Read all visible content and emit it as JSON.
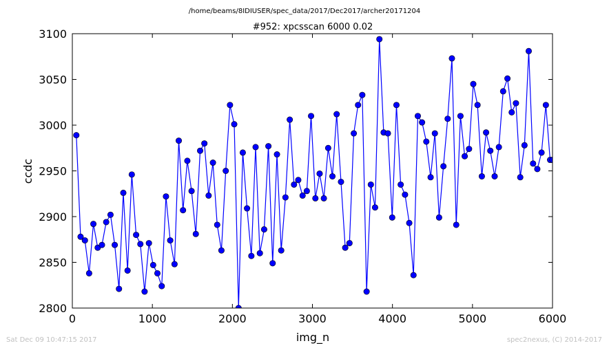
{
  "chart_data": {
    "type": "line",
    "suptitle": "/home/beams/8IDIUSER/spec_data/2017/Dec2017/archer20171204",
    "title": "#952: xpcsscan 6000 0.02",
    "xlabel": "img_n",
    "ylabel": "ccdc",
    "xlim": [
      0,
      6000
    ],
    "ylim": [
      2800,
      3100
    ],
    "xticks": [
      0,
      1000,
      2000,
      3000,
      4000,
      5000,
      6000
    ],
    "yticks": [
      2800,
      2850,
      2900,
      2950,
      3000,
      3050,
      3100
    ],
    "grid": false,
    "line_color": "#0000ff",
    "marker_color": "#0000ff",
    "x": [
      50,
      103,
      157,
      210,
      263,
      317,
      370,
      423,
      477,
      530,
      583,
      637,
      690,
      743,
      797,
      850,
      903,
      957,
      1010,
      1063,
      1117,
      1170,
      1223,
      1277,
      1330,
      1383,
      1437,
      1490,
      1543,
      1597,
      1650,
      1703,
      1757,
      1810,
      1863,
      1917,
      1970,
      2023,
      2077,
      2130,
      2183,
      2237,
      2290,
      2343,
      2397,
      2450,
      2503,
      2557,
      2610,
      2663,
      2717,
      2770,
      2823,
      2877,
      2930,
      2983,
      3037,
      3090,
      3143,
      3197,
      3250,
      3303,
      3357,
      3410,
      3463,
      3517,
      3570,
      3623,
      3677,
      3730,
      3783,
      3837,
      3890,
      3943,
      3997,
      4050,
      4103,
      4157,
      4210,
      4263,
      4317,
      4370,
      4423,
      4477,
      4530,
      4583,
      4637,
      4690,
      4743,
      4797,
      4850,
      4903,
      4957,
      5010,
      5063,
      5117,
      5170,
      5223,
      5277,
      5330,
      5383,
      5437,
      5490,
      5543,
      5597,
      5650,
      5703,
      5757,
      5810,
      5863,
      5917,
      5970,
      6000
    ],
    "y": [
      2989,
      2878,
      2874,
      2838,
      2892,
      2866,
      2869,
      2894,
      2902,
      2869,
      2821,
      2926,
      2841,
      2946,
      2880,
      2870,
      2818,
      2871,
      2847,
      2838,
      2824,
      2922,
      2874,
      2848,
      2983,
      2907,
      2961,
      2928,
      2881,
      2972,
      2980,
      2923,
      2959,
      2891,
      2863,
      2950,
      3022,
      3001,
      2800,
      2970,
      2909,
      2857,
      2976,
      2860,
      2886,
      2977,
      2849,
      2968,
      2863,
      2921,
      3006,
      2935,
      2940,
      2923,
      2928,
      3010,
      2920,
      2947,
      2920,
      2975,
      2944,
      3012,
      2938,
      2866,
      2871,
      2991,
      3022,
      3033,
      2818,
      2935,
      2910,
      3094,
      2992,
      2991,
      2899,
      3022,
      2935,
      2924,
      2893,
      2836,
      3010,
      3003,
      2982,
      2943,
      2991,
      2899,
      2955,
      3007,
      3073,
      2891,
      3010,
      2966,
      2974,
      3045,
      3022,
      2944,
      2992,
      2972,
      2944,
      2976,
      3037,
      3051,
      3014,
      3024,
      2943,
      2978,
      3081,
      2958,
      2952,
      2970,
      3022,
      2962,
      2962
    ]
  },
  "footer": {
    "left": "Sat Dec 09 10:47:15 2017",
    "right": "spec2nexus, (C) 2014-2017"
  }
}
